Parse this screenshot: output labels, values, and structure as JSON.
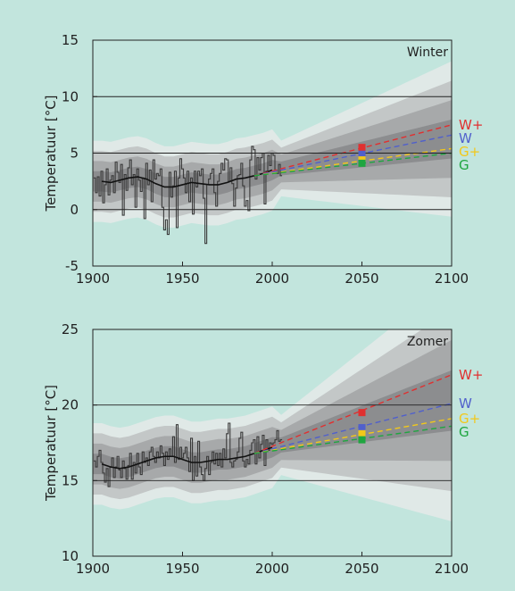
{
  "chart_data": [
    {
      "type": "line",
      "title": "Winter",
      "ylabel": "Temperatuur [°C]",
      "xlim": [
        1900,
        2100
      ],
      "ylim": [
        -5,
        15
      ],
      "xticks": [
        1900,
        1950,
        2000,
        2050,
        2100
      ],
      "yticks": [
        -5,
        0,
        5,
        10,
        15
      ],
      "gridlines_y": [
        0,
        5,
        10
      ],
      "observed": {
        "x": [
          1901,
          1902,
          1903,
          1904,
          1905,
          1906,
          1907,
          1908,
          1909,
          1910,
          1911,
          1912,
          1913,
          1914,
          1915,
          1916,
          1917,
          1918,
          1919,
          1920,
          1921,
          1922,
          1923,
          1924,
          1925,
          1926,
          1927,
          1928,
          1929,
          1930,
          1931,
          1932,
          1933,
          1934,
          1935,
          1936,
          1937,
          1938,
          1939,
          1940,
          1941,
          1942,
          1943,
          1944,
          1945,
          1946,
          1947,
          1948,
          1949,
          1950,
          1951,
          1952,
          1953,
          1954,
          1955,
          1956,
          1957,
          1958,
          1959,
          1960,
          1961,
          1962,
          1963,
          1964,
          1965,
          1966,
          1967,
          1968,
          1969,
          1970,
          1971,
          1972,
          1973,
          1974,
          1975,
          1976,
          1977,
          1978,
          1979,
          1980,
          1981,
          1982,
          1983,
          1984,
          1985,
          1986,
          1987,
          1988,
          1989,
          1990,
          1991,
          1992,
          1993,
          1994,
          1995,
          1996,
          1997,
          1998,
          1999,
          2000,
          2001,
          2002,
          2003,
          2004,
          2005
        ],
        "y": [
          2.8,
          1.5,
          2.9,
          1.2,
          3.4,
          0.6,
          2.2,
          3.6,
          1.3,
          2.6,
          3.0,
          1.5,
          4.2,
          3.3,
          2.4,
          4.0,
          -0.5,
          3.1,
          1.7,
          3.7,
          4.4,
          2.2,
          3.1,
          0.2,
          3.6,
          2.6,
          1.6,
          2.8,
          -0.8,
          4.1,
          2.2,
          3.5,
          0.7,
          4.4,
          2.7,
          3.2,
          3.0,
          3.6,
          0.2,
          -1.8,
          -0.9,
          -2.2,
          3.3,
          1.1,
          2.1,
          3.4,
          -1.6,
          2.8,
          4.5,
          3.6,
          2.8,
          1.5,
          3.4,
          0.7,
          2.8,
          -0.4,
          3.4,
          2.0,
          3.4,
          3.0,
          3.6,
          1.0,
          -3.0,
          2.2,
          2.7,
          3.2,
          3.6,
          1.5,
          0.3,
          2.5,
          3.2,
          4.1,
          3.5,
          4.5,
          4.4,
          2.5,
          3.7,
          2.3,
          0.3,
          1.9,
          3.0,
          3.1,
          4.1,
          2.1,
          0.3,
          0.8,
          -0.1,
          4.4,
          5.6,
          5.3,
          2.7,
          4.6,
          3.5,
          4.6,
          5.0,
          0.5,
          3.4,
          4.8,
          3.9,
          5.0,
          4.8,
          3.5,
          3.2,
          4.0,
          3.0
        ]
      },
      "smoothed": {
        "x": [
          1905,
          1910,
          1915,
          1920,
          1925,
          1930,
          1935,
          1940,
          1945,
          1950,
          1955,
          1960,
          1965,
          1970,
          1975,
          1980,
          1985,
          1990,
          1995,
          2000
        ],
        "y": [
          2.5,
          2.4,
          2.6,
          2.8,
          2.9,
          2.7,
          2.3,
          2.0,
          2.0,
          2.2,
          2.4,
          2.3,
          2.2,
          2.2,
          2.4,
          2.7,
          2.8,
          3.0,
          3.2,
          3.5
        ]
      },
      "scenarios": [
        {
          "name": "W+",
          "color": "#e03030",
          "y2050": 5.5,
          "y2100": 7.5
        },
        {
          "name": "W",
          "color": "#5060cc",
          "y2050": 4.9,
          "y2100": 6.6
        },
        {
          "name": "G+",
          "color": "#f2c81a",
          "y2050": 4.4,
          "y2100": 5.4
        },
        {
          "name": "G",
          "color": "#1fa640",
          "y2050": 4.1,
          "y2100": 5.0
        }
      ],
      "uncertainty_band_colors": [
        "#e0e9e7",
        "#c3c7c7",
        "#a7a9aa",
        "#8c8d8f"
      ]
    },
    {
      "type": "line",
      "title": "Zomer",
      "ylabel": "Temperatuur [°C]",
      "xlim": [
        1900,
        2100
      ],
      "ylim": [
        10,
        25
      ],
      "xticks": [
        1900,
        1950,
        2000,
        2050,
        2100
      ],
      "yticks": [
        10,
        15,
        20,
        25
      ],
      "gridlines_y": [
        15,
        20
      ],
      "observed": {
        "x": [
          1901,
          1902,
          1903,
          1904,
          1905,
          1906,
          1907,
          1908,
          1909,
          1910,
          1911,
          1912,
          1913,
          1914,
          1915,
          1916,
          1917,
          1918,
          1919,
          1920,
          1921,
          1922,
          1923,
          1924,
          1925,
          1926,
          1927,
          1928,
          1929,
          1930,
          1931,
          1932,
          1933,
          1934,
          1935,
          1936,
          1937,
          1938,
          1939,
          1940,
          1941,
          1942,
          1943,
          1944,
          1945,
          1946,
          1947,
          1948,
          1949,
          1950,
          1951,
          1952,
          1953,
          1954,
          1955,
          1956,
          1957,
          1958,
          1959,
          1960,
          1961,
          1962,
          1963,
          1964,
          1965,
          1966,
          1967,
          1968,
          1969,
          1970,
          1971,
          1972,
          1973,
          1974,
          1975,
          1976,
          1977,
          1978,
          1979,
          1980,
          1981,
          1982,
          1983,
          1984,
          1985,
          1986,
          1987,
          1988,
          1989,
          1990,
          1991,
          1992,
          1993,
          1994,
          1995,
          1996,
          1997,
          1998,
          1999,
          2000,
          2001,
          2002,
          2003,
          2004,
          2005
        ],
        "y": [
          16.3,
          15.9,
          16.6,
          17.0,
          16.2,
          15.5,
          14.9,
          15.8,
          14.6,
          15.9,
          16.5,
          15.2,
          15.9,
          16.6,
          15.7,
          15.2,
          16.3,
          15.8,
          15.1,
          16.0,
          16.8,
          15.1,
          16.2,
          15.5,
          16.8,
          15.9,
          15.4,
          16.9,
          16.2,
          16.5,
          16.0,
          16.9,
          17.2,
          16.6,
          16.2,
          16.9,
          16.5,
          17.3,
          16.8,
          16.0,
          16.9,
          16.4,
          17.1,
          16.6,
          17.9,
          16.2,
          18.7,
          16.4,
          17.2,
          16.5,
          16.8,
          17.2,
          16.5,
          15.6,
          17.8,
          15.0,
          16.6,
          15.3,
          17.6,
          15.9,
          15.4,
          15.0,
          15.8,
          16.6,
          15.4,
          16.2,
          16.9,
          16.1,
          16.8,
          16.0,
          16.8,
          15.9,
          17.1,
          16.5,
          18.1,
          18.8,
          16.2,
          15.9,
          16.3,
          16.4,
          16.9,
          17.8,
          18.2,
          16.3,
          15.9,
          16.4,
          16.1,
          17.0,
          17.5,
          17.7,
          16.1,
          17.9,
          16.5,
          17.4,
          18.0,
          16.0,
          17.7,
          17.0,
          17.5,
          17.4,
          17.5,
          17.7,
          18.3,
          17.6,
          17.7
        ]
      },
      "smoothed": {
        "x": [
          1905,
          1910,
          1915,
          1920,
          1925,
          1930,
          1935,
          1940,
          1945,
          1950,
          1955,
          1960,
          1965,
          1970,
          1975,
          1980,
          1985,
          1990,
          1995,
          2000
        ],
        "y": [
          16.1,
          15.9,
          15.8,
          15.9,
          16.1,
          16.3,
          16.5,
          16.6,
          16.6,
          16.4,
          16.2,
          16.2,
          16.3,
          16.4,
          16.4,
          16.5,
          16.6,
          16.8,
          17.0,
          17.2
        ]
      },
      "scenarios": [
        {
          "name": "W+",
          "color": "#e03030",
          "y2050": 19.5,
          "y2100": 22.0
        },
        {
          "name": "W",
          "color": "#5060cc",
          "y2050": 18.5,
          "y2100": 20.1
        },
        {
          "name": "G+",
          "color": "#f2c81a",
          "y2050": 18.1,
          "y2100": 19.1
        },
        {
          "name": "G",
          "color": "#1fa640",
          "y2050": 17.7,
          "y2100": 18.6
        }
      ],
      "uncertainty_band_colors": [
        "#e0e9e7",
        "#c3c7c7",
        "#a7a9aa",
        "#8c8d8f"
      ]
    }
  ]
}
